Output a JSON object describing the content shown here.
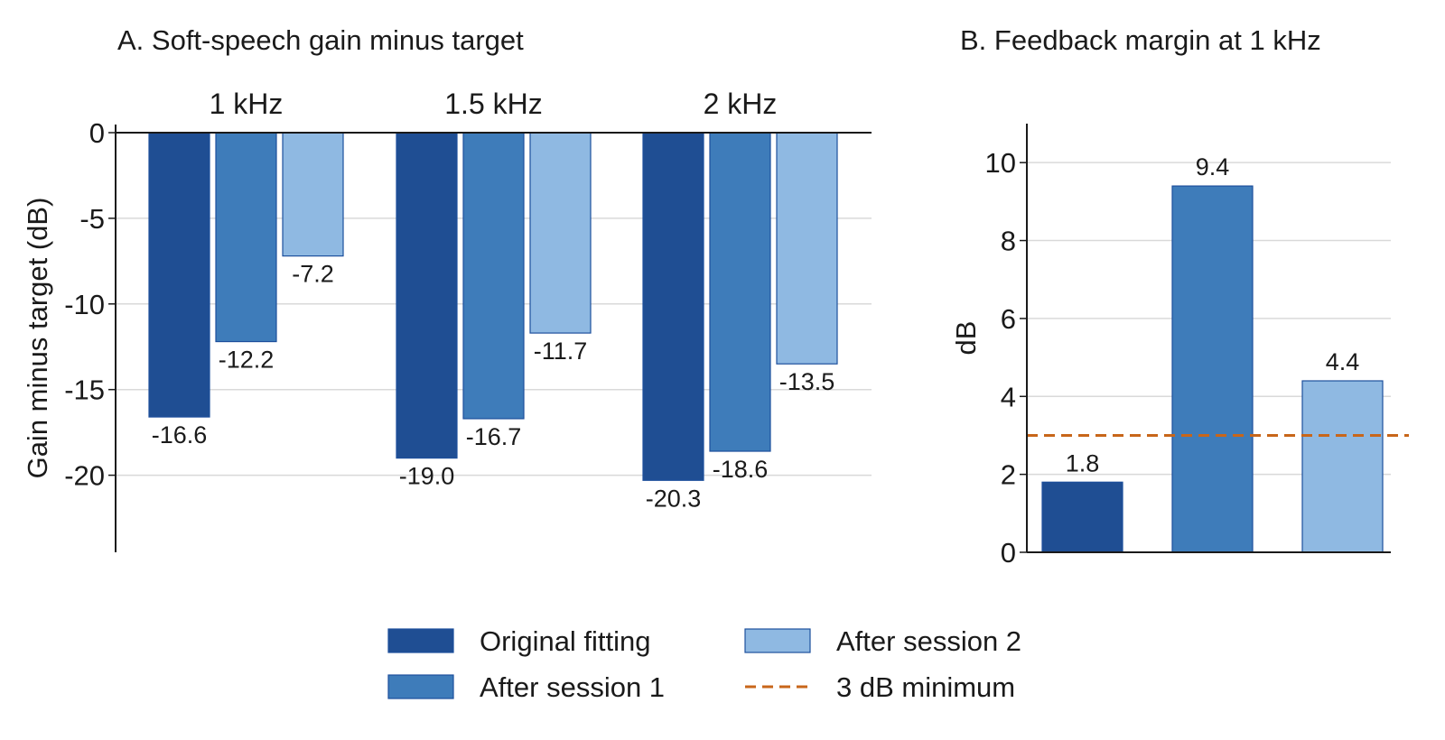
{
  "colors": {
    "original": "#1f4e93",
    "session1": "#3e7cba",
    "session2": "#8fb9e2",
    "bar_edge": "#1d4f9c",
    "threshold": "#c8661a",
    "grid": "#d9d9d9",
    "axis": "#1a1a1a"
  },
  "legend": {
    "items": [
      {
        "key": "original",
        "label": "Original fitting"
      },
      {
        "key": "session1",
        "label": "After session 1"
      },
      {
        "key": "session2",
        "label": "After session 2"
      },
      {
        "key": "threshold",
        "label": "3 dB minimum"
      }
    ]
  },
  "chart_data": [
    {
      "type": "bar",
      "title": "A. Soft-speech gain minus target",
      "ylabel": "Gain minus target (dB)",
      "xlabel": "",
      "categories": [
        "1 kHz",
        "1.5 kHz",
        "2 kHz"
      ],
      "category_position": "top",
      "ylim": [
        -24.5,
        0
      ],
      "yticks": [
        0,
        -5,
        -10,
        -15,
        -20
      ],
      "ytick_labels": [
        "0",
        "-5",
        "-10",
        "-15",
        "-20"
      ],
      "grid": "horizontal",
      "series": [
        {
          "key": "original",
          "name": "Original fitting",
          "values": [
            -16.6,
            -19.0,
            -20.3
          ],
          "labels": [
            "-16.6",
            "-19.0",
            "-20.3"
          ]
        },
        {
          "key": "session1",
          "name": "After session 1",
          "values": [
            -12.2,
            -16.7,
            -18.6
          ],
          "labels": [
            "-12.2",
            "-16.7",
            "-18.6"
          ]
        },
        {
          "key": "session2",
          "name": "After session 2",
          "values": [
            -7.2,
            -11.7,
            -13.5
          ],
          "labels": [
            "-7.2",
            "-11.7",
            "-13.5"
          ]
        }
      ]
    },
    {
      "type": "bar",
      "title": "B. Feedback margin at 1 kHz",
      "ylabel": "dB",
      "xlabel": "",
      "ylim": [
        0,
        11
      ],
      "yticks": [
        0,
        2,
        4,
        6,
        8,
        10
      ],
      "ytick_labels": [
        "0",
        "2",
        "4",
        "6",
        "8",
        "10"
      ],
      "grid": "horizontal",
      "bars": [
        {
          "key": "original",
          "value": 1.8,
          "label": "1.8"
        },
        {
          "key": "session1",
          "value": 9.4,
          "label": "9.4"
        },
        {
          "key": "session2",
          "value": 4.4,
          "label": "4.4"
        }
      ],
      "threshold": {
        "key": "threshold",
        "value": 3,
        "name": "3 dB minimum"
      }
    }
  ]
}
